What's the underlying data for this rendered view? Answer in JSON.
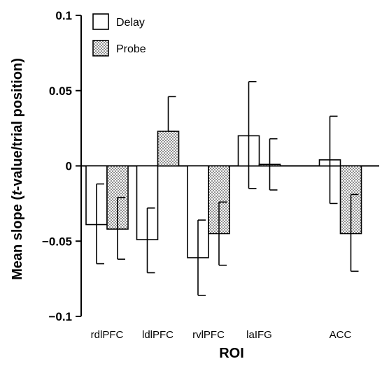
{
  "chart_data": {
    "type": "bar",
    "xlabel": "ROI",
    "ylabel_parts": [
      "Mean slope (",
      "t",
      "-value/trial position)"
    ],
    "ylim": [
      -0.1,
      0.1
    ],
    "yticks": [
      {
        "value": 0.1,
        "label": "0.1"
      },
      {
        "value": 0.05,
        "label": "0.05"
      },
      {
        "value": 0,
        "label": "0"
      },
      {
        "value": -0.05,
        "label": "−0.05"
      },
      {
        "value": -0.1,
        "label": "−0.1"
      }
    ],
    "categories": [
      "rdlPFC",
      "ldlPFC",
      "rvlPFC",
      "laIFG",
      "ACC"
    ],
    "category_positions": [
      0,
      1,
      2,
      3,
      4.6
    ],
    "series": [
      {
        "name": "Delay",
        "fill": "#ffffff",
        "pattern": "none",
        "values": [
          -0.039,
          -0.049,
          -0.061,
          0.02,
          0.004
        ],
        "err_upper": [
          -0.012,
          -0.028,
          -0.036,
          0.056,
          0.033
        ],
        "err_lower": [
          -0.065,
          -0.071,
          -0.086,
          -0.015,
          -0.025
        ]
      },
      {
        "name": "Probe",
        "fill": "#ffffff",
        "pattern": "dots",
        "values": [
          -0.042,
          0.023,
          -0.045,
          0.001,
          -0.045
        ],
        "err_upper": [
          -0.021,
          0.046,
          -0.024,
          0.018,
          -0.019
        ],
        "err_lower": [
          -0.062,
          0.023,
          -0.066,
          -0.016,
          -0.07
        ]
      }
    ],
    "legend_position": "top-left",
    "grid": false
  }
}
